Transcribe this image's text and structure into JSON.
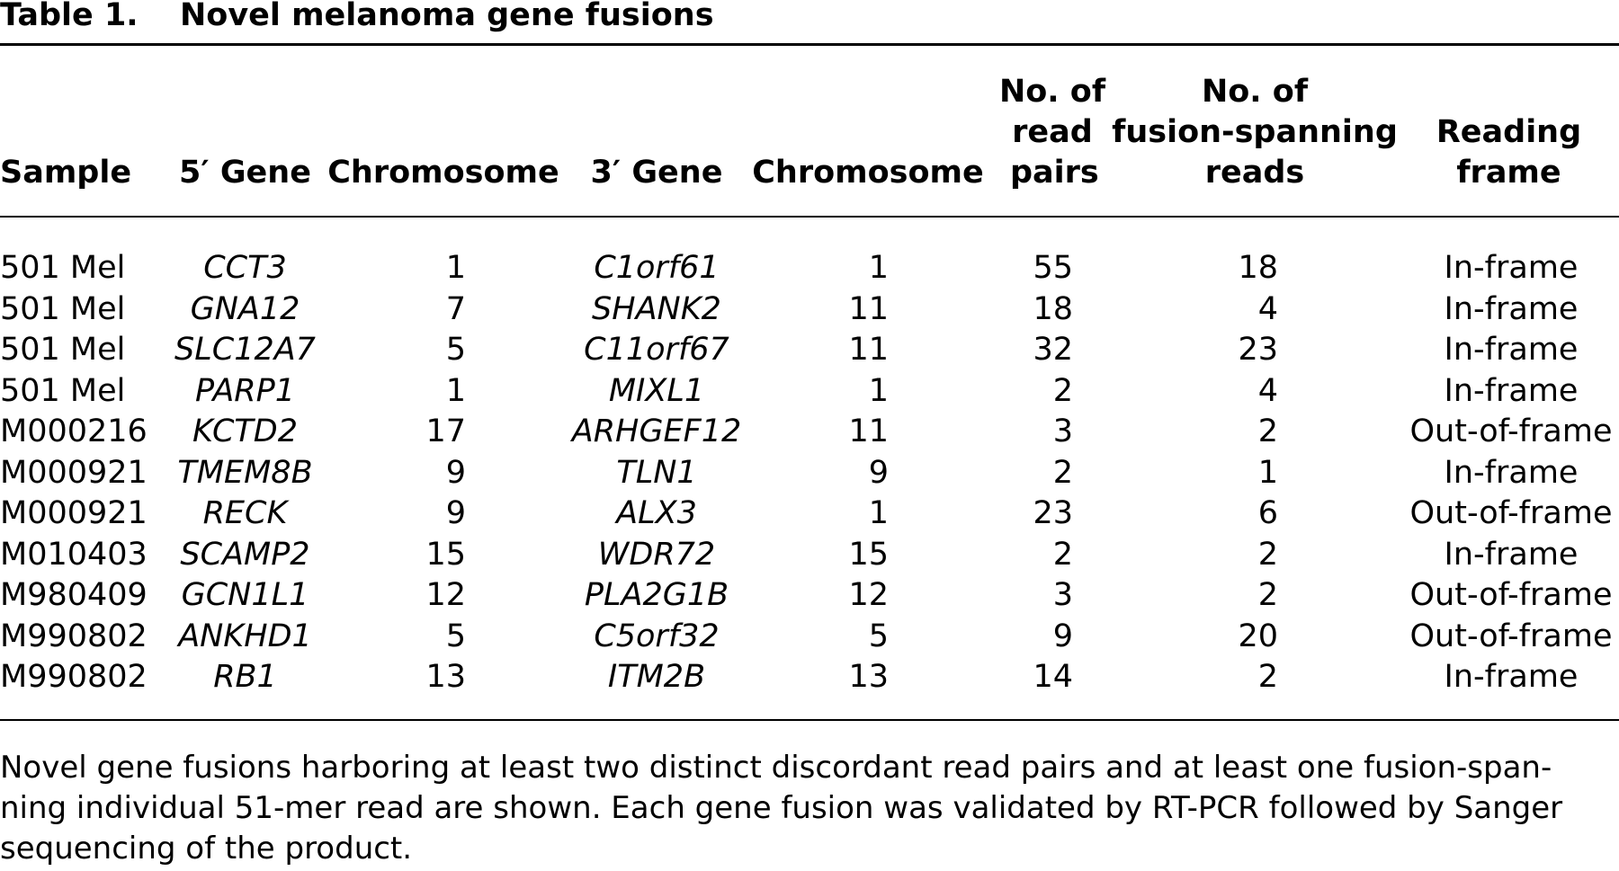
{
  "table": {
    "label": "Table 1.",
    "title": "Novel melanoma gene fusions",
    "headers": {
      "sample": [
        "Sample"
      ],
      "gene5": [
        "5′ Gene"
      ],
      "chrom5": [
        "Chromosome"
      ],
      "gene3": [
        "3′ Gene"
      ],
      "chrom3": [
        "Chromosome"
      ],
      "read_pairs": [
        "No. of",
        "read",
        "pairs"
      ],
      "spanning": [
        "No. of",
        "fusion-spanning",
        "reads"
      ],
      "frame": [
        "Reading",
        "frame"
      ]
    },
    "rows": [
      {
        "sample": "501 Mel",
        "gene5": "CCT3",
        "chrom5": "1",
        "gene3": "C1orf61",
        "chrom3": "1",
        "read_pairs": "55",
        "spanning": "18",
        "frame": "In-frame"
      },
      {
        "sample": "501 Mel",
        "gene5": "GNA12",
        "chrom5": "7",
        "gene3": "SHANK2",
        "chrom3": "11",
        "read_pairs": "18",
        "spanning": "4",
        "frame": "In-frame"
      },
      {
        "sample": "501 Mel",
        "gene5": "SLC12A7",
        "chrom5": "5",
        "gene3": "C11orf67",
        "chrom3": "11",
        "read_pairs": "32",
        "spanning": "23",
        "frame": "In-frame"
      },
      {
        "sample": "501 Mel",
        "gene5": "PARP1",
        "chrom5": "1",
        "gene3": "MIXL1",
        "chrom3": "1",
        "read_pairs": "2",
        "spanning": "4",
        "frame": "In-frame"
      },
      {
        "sample": "M000216",
        "gene5": "KCTD2",
        "chrom5": "17",
        "gene3": "ARHGEF12",
        "chrom3": "11",
        "read_pairs": "3",
        "spanning": "2",
        "frame": "Out-of-frame"
      },
      {
        "sample": "M000921",
        "gene5": "TMEM8B",
        "chrom5": "9",
        "gene3": "TLN1",
        "chrom3": "9",
        "read_pairs": "2",
        "spanning": "1",
        "frame": "In-frame"
      },
      {
        "sample": "M000921",
        "gene5": "RECK",
        "chrom5": "9",
        "gene3": "ALX3",
        "chrom3": "1",
        "read_pairs": "23",
        "spanning": "6",
        "frame": "Out-of-frame"
      },
      {
        "sample": "M010403",
        "gene5": "SCAMP2",
        "chrom5": "15",
        "gene3": "WDR72",
        "chrom3": "15",
        "read_pairs": "2",
        "spanning": "2",
        "frame": "In-frame"
      },
      {
        "sample": "M980409",
        "gene5": "GCN1L1",
        "chrom5": "12",
        "gene3": "PLA2G1B",
        "chrom3": "12",
        "read_pairs": "3",
        "spanning": "2",
        "frame": "Out-of-frame"
      },
      {
        "sample": "M990802",
        "gene5": "ANKHD1",
        "chrom5": "5",
        "gene3": "C5orf32",
        "chrom3": "5",
        "read_pairs": "9",
        "spanning": "20",
        "frame": "Out-of-frame"
      },
      {
        "sample": "M990802",
        "gene5": "RB1",
        "chrom5": "13",
        "gene3": "ITM2B",
        "chrom3": "13",
        "read_pairs": "14",
        "spanning": "2",
        "frame": "In-frame"
      }
    ],
    "footnote": [
      "Novel gene fusions harboring at least two distinct discordant read pairs and at least one fusion-span-",
      "ning individual 51-mer read are shown. Each gene fusion was validated by RT-PCR followed by Sanger",
      "sequencing of the product."
    ]
  }
}
